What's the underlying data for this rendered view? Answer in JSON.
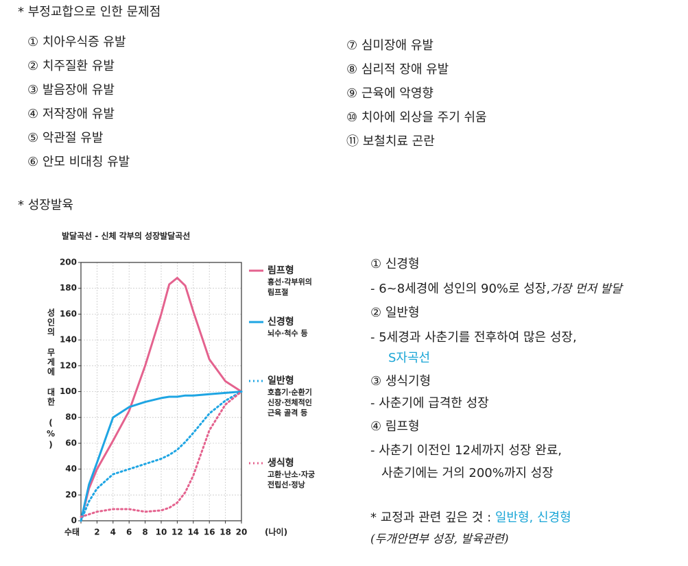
{
  "problems": {
    "title": "* 부정교합으로 인한 문제점",
    "items": [
      "① 치아우식증 유발",
      "② 치주질환 유발",
      "③ 발음장애 유발",
      "④ 저작장애 유발",
      "⑤ 악관절 유발",
      "⑥ 안모 비대칭 유발",
      "⑦ 심미장애 유발",
      "⑧ 심리적 장애 유발",
      "⑨ 근육에 악영향",
      "⑩ 치아에 외상을 주기 쉬움",
      "⑪ 보철치료 곤란"
    ]
  },
  "growth": {
    "title": "* 성장발육",
    "notes": [
      [
        {
          "text": "① 신경형"
        }
      ],
      [
        {
          "text": "- 6~8세경에 성인의 90%로 성장,"
        },
        {
          "text": "가장 먼저 발달",
          "hand": true
        }
      ],
      [
        {
          "text": "② 일반형"
        }
      ],
      [
        {
          "text": "- 5세경과 사춘기를 전후하여 많은 성장,"
        }
      ],
      [
        {
          "text": "S자곡선",
          "color": "#1aa5d6"
        }
      ],
      [
        {
          "text": "③ 생식기형"
        }
      ],
      [
        {
          "text": "- 사춘기에 급격한 성장"
        }
      ],
      [
        {
          "text": "④ 림프형"
        }
      ],
      [
        {
          "text": "- 사춘기 이전인 12세까지 성장 완료,"
        }
      ],
      [
        {
          "text": "사춘기에는 거의 200%까지 성장"
        }
      ],
      [
        {
          "text": "* 교정과 관련 깊은 것 : "
        },
        {
          "text": "일반형, 신경형",
          "color": "#1aa5d6"
        }
      ],
      [
        {
          "text": "(두개안면부 성장, 발육관련)",
          "hand": true
        }
      ]
    ]
  },
  "chart_data": {
    "type": "line",
    "title": "발달곡선 - 신체 각부의 성장발달곡선",
    "ylabel": "성인의 무게에 대한 (%)",
    "xlabel": "(나이)",
    "x": [
      0,
      1,
      2,
      4,
      6,
      8,
      10,
      11,
      12,
      13,
      14,
      16,
      18,
      20
    ],
    "xlim": [
      0,
      20
    ],
    "xticks": [
      {
        "value": 0,
        "label": "수태"
      },
      2,
      4,
      6,
      8,
      10,
      12,
      14,
      16,
      18,
      20
    ],
    "ylim": [
      0,
      200
    ],
    "yticks": [
      0,
      20,
      40,
      60,
      80,
      100,
      120,
      140,
      160,
      180,
      200
    ],
    "grid": true,
    "series": [
      {
        "name": "림프형",
        "description": [
          "흉선·각부위의",
          "림프절"
        ],
        "color": "#e4628e",
        "dash": "solid",
        "values": [
          0,
          25,
          40,
          62,
          85,
          120,
          160,
          183,
          188,
          182,
          162,
          125,
          108,
          100
        ]
      },
      {
        "name": "신경형",
        "description": [
          "뇌수·척수 등"
        ],
        "color": "#1ea5e3",
        "dash": "solid",
        "values": [
          0,
          28,
          45,
          80,
          88,
          92,
          95,
          96,
          96,
          97,
          97,
          98,
          99,
          100
        ]
      },
      {
        "name": "일반형",
        "description": [
          "호흡기·순환기",
          "신장·전체적인",
          "근육 골격 등"
        ],
        "color": "#1ea5e3",
        "dash": "dotted",
        "values": [
          0,
          15,
          25,
          36,
          40,
          44,
          48,
          51,
          55,
          61,
          68,
          83,
          93,
          100
        ]
      },
      {
        "name": "생식형",
        "description": [
          "고환·난소·자궁",
          "전립선·정낭"
        ],
        "color": "#e4628e",
        "dash": "dotted",
        "values": [
          3,
          5,
          7,
          9,
          9,
          7,
          8,
          10,
          14,
          22,
          35,
          70,
          90,
          100
        ]
      }
    ]
  }
}
